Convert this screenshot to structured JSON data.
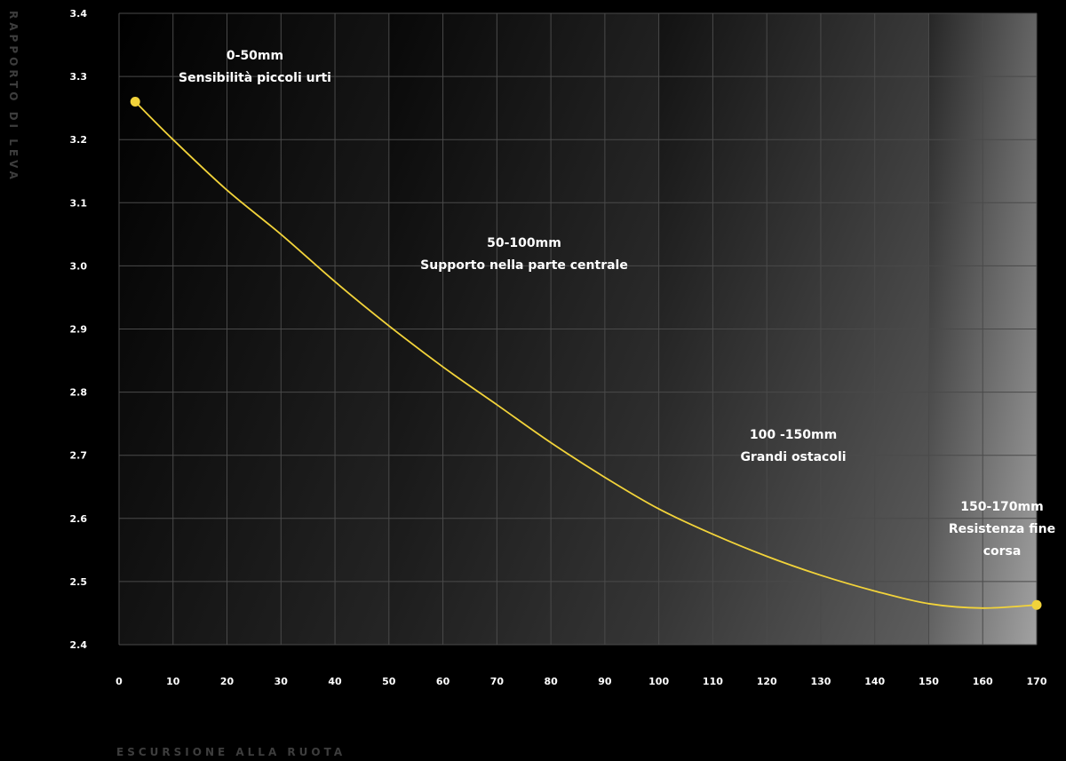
{
  "chart_data": {
    "type": "line",
    "xlabel": "ESCURSIONE ALLA RUOTA",
    "ylabel": "RAPPORTO DI LEVA",
    "xlim": [
      0,
      170
    ],
    "ylim": [
      2.4,
      3.4
    ],
    "x_ticks": [
      "0",
      "10",
      "20",
      "30",
      "40",
      "50",
      "60",
      "70",
      "80",
      "90",
      "100",
      "110",
      "120",
      "130",
      "140",
      "150",
      "160",
      "170"
    ],
    "y_ticks": [
      "3.4",
      "3.3",
      "3.2",
      "3.1",
      "3.0",
      "2.9",
      "2.8",
      "2.7",
      "2.6",
      "2.5",
      "2.4"
    ],
    "grid": true,
    "series": [
      {
        "color": "#f2d33a",
        "x": [
          3,
          10,
          20,
          30,
          40,
          50,
          60,
          70,
          80,
          90,
          100,
          110,
          120,
          130,
          140,
          150,
          160,
          170
        ],
        "y": [
          3.26,
          3.2,
          3.12,
          3.05,
          2.975,
          2.905,
          2.84,
          2.78,
          2.72,
          2.665,
          2.615,
          2.575,
          2.54,
          2.51,
          2.485,
          2.465,
          2.458,
          2.463
        ]
      }
    ],
    "endpoints": [
      {
        "x": 3,
        "y": 3.26
      },
      {
        "x": 170,
        "y": 2.463
      }
    ],
    "bands": [
      {
        "from": 0,
        "to": 50,
        "line1": "0-50mm",
        "line2": "Sensibilità piccoli urti",
        "line3": ""
      },
      {
        "from": 50,
        "to": 100,
        "line1": "50-100mm",
        "line2": "Supporto nella parte centrale",
        "line3": ""
      },
      {
        "from": 100,
        "to": 150,
        "line1": "100 -150mm",
        "line2": "Grandi ostacoli",
        "line3": ""
      },
      {
        "from": 150,
        "to": 170,
        "line1": "150-170mm",
        "line2": "Resistenza fine",
        "line3": "corsa"
      }
    ]
  }
}
